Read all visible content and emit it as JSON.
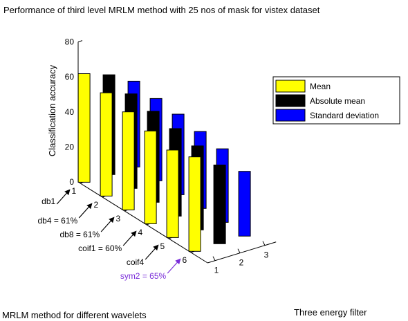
{
  "chart_data": {
    "type": "bar",
    "title": "Performance of third level MRLM method with 25 nos of mask for vistex dataset",
    "xlabel": "MRLM method for different wavelets",
    "ylabel": "Three energy filter",
    "zlabel": "Classification accuracy",
    "zlim": [
      0,
      80
    ],
    "z_ticks": [
      "0",
      "20",
      "40",
      "60",
      "80"
    ],
    "x_ticks": [
      "1",
      "2",
      "3",
      "4",
      "5",
      "6"
    ],
    "y_ticks": [
      "1",
      "2",
      "3"
    ],
    "categories": [
      "1",
      "2",
      "3",
      "4",
      "5",
      "6"
    ],
    "series": [
      {
        "name": "Mean",
        "color": "#ffff00",
        "values": [
          62,
          59,
          56,
          53,
          50,
          54
        ]
      },
      {
        "name": "Absolute mean",
        "color": "#000000",
        "values": [
          57,
          54,
          52,
          50,
          48,
          45
        ]
      },
      {
        "name": "Standard deviation",
        "color": "#0000ff",
        "values": [
          49,
          47,
          46,
          44,
          42,
          37
        ]
      }
    ],
    "legend_position": "right",
    "grid": false,
    "annotations": [
      {
        "label": "db1",
        "color": "#000000",
        "target": "1"
      },
      {
        "label": "db4 = 61%",
        "color": "#000000",
        "target": "2"
      },
      {
        "label": "db8 = 61%",
        "color": "#000000",
        "target": "3"
      },
      {
        "label": "coif1 = 60%",
        "color": "#000000",
        "target": "4"
      },
      {
        "label": "coif4",
        "color": "#000000",
        "target": "5"
      },
      {
        "label": "sym2 = 65%",
        "color": "#7b2fd9",
        "target": "6"
      }
    ]
  }
}
